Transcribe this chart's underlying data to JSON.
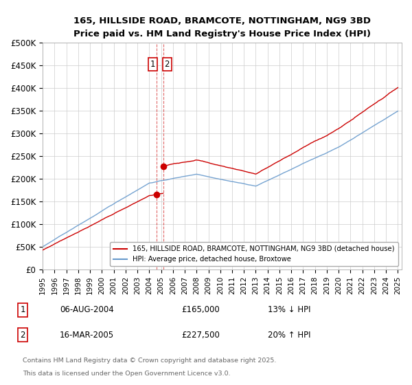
{
  "title": "165, HILLSIDE ROAD, BRAMCOTE, NOTTINGHAM, NG9 3BD",
  "subtitle": "Price paid vs. HM Land Registry's House Price Index (HPI)",
  "ylabel_ticks": [
    "£0",
    "£50K",
    "£100K",
    "£150K",
    "£200K",
    "£250K",
    "£300K",
    "£350K",
    "£400K",
    "£450K",
    "£500K"
  ],
  "ytick_values": [
    0,
    50000,
    100000,
    150000,
    200000,
    250000,
    300000,
    350000,
    400000,
    450000,
    500000
  ],
  "xtick_years": [
    1995,
    1996,
    1997,
    1998,
    1999,
    2000,
    2001,
    2002,
    2003,
    2004,
    2005,
    2006,
    2007,
    2008,
    2009,
    2010,
    2011,
    2012,
    2013,
    2014,
    2015,
    2016,
    2017,
    2018,
    2019,
    2020,
    2021,
    2022,
    2023,
    2024,
    2025
  ],
  "transaction1": {
    "date_float": 2004.597,
    "price": 165000,
    "label": "1",
    "hpi_pct": "13% ↓ HPI",
    "date_str": "06-AUG-2004",
    "price_str": "£165,000"
  },
  "transaction2": {
    "date_float": 2005.205,
    "price": 227500,
    "label": "2",
    "hpi_pct": "20% ↑ HPI",
    "date_str": "16-MAR-2005",
    "price_str": "£227,500"
  },
  "line_color_red": "#cc0000",
  "line_color_blue": "#6699cc",
  "vline_color": "#cc0000",
  "background_color": "#ffffff",
  "grid_color": "#cccccc",
  "legend_line1": "165, HILLSIDE ROAD, BRAMCOTE, NOTTINGHAM, NG9 3BD (detached house)",
  "legend_line2": "HPI: Average price, detached house, Broxtowe",
  "footer1": "Contains HM Land Registry data © Crown copyright and database right 2025.",
  "footer2": "This data is licensed under the Open Government Licence v3.0.",
  "figsize": [
    6.0,
    5.6
  ],
  "dpi": 100
}
